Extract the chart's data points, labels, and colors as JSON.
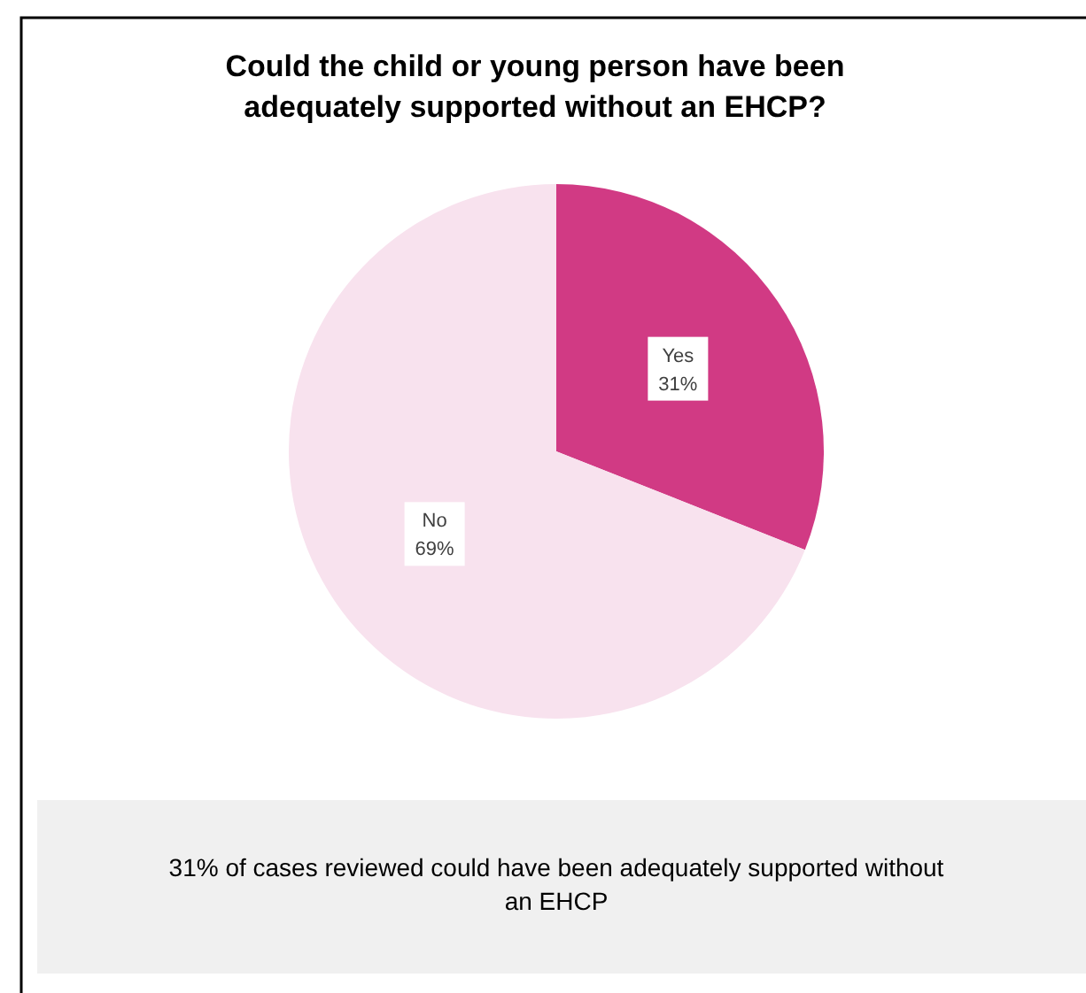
{
  "chart_data": {
    "type": "pie",
    "title": "Could the child or young person have been adequately supported without an EHCP?",
    "categories": [
      "Yes",
      "No"
    ],
    "values": [
      31,
      69
    ],
    "colors": [
      "#d13a84",
      "#f8e2ee"
    ],
    "value_labels": [
      "31%",
      "69%"
    ],
    "annotations": [
      "31% of cases reviewed could have been adequately supported without an EHCP"
    ]
  }
}
